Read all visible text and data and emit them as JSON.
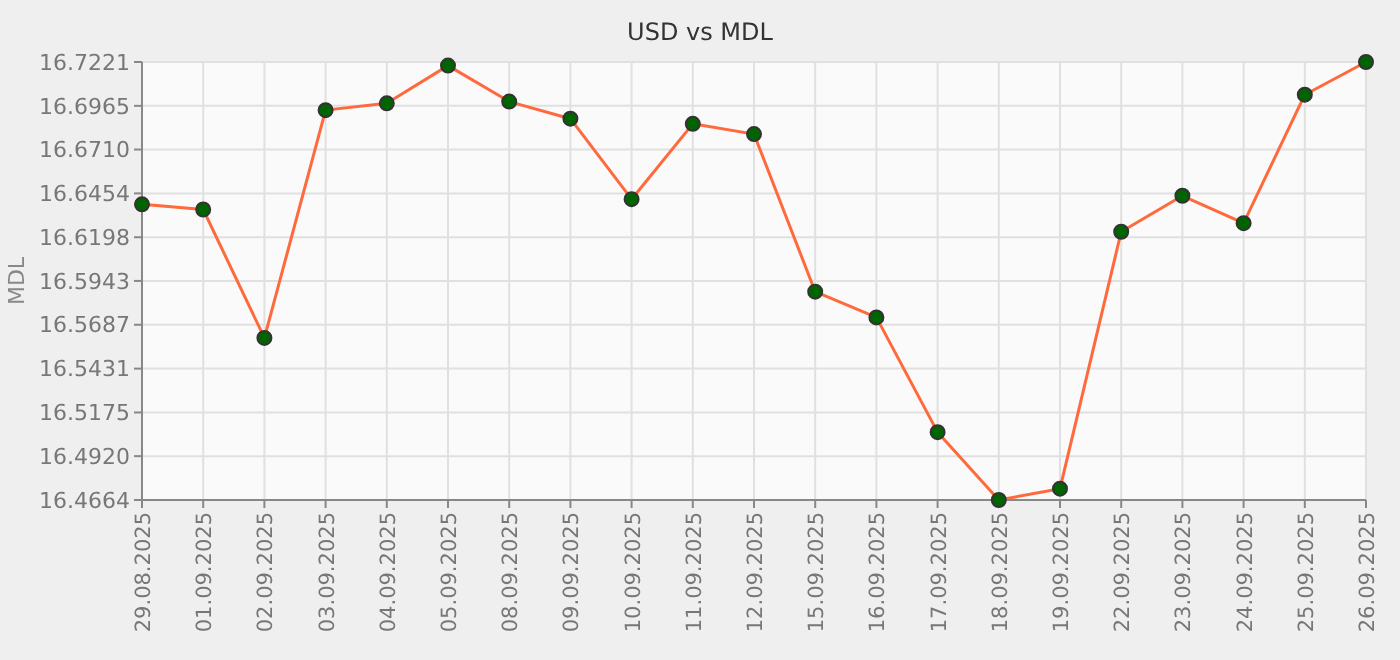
{
  "chart_data": {
    "type": "line",
    "title": "USD vs MDL",
    "ylabel": "MDL",
    "categories": [
      "29.08.2025",
      "01.09.2025",
      "02.09.2025",
      "03.09.2025",
      "04.09.2025",
      "05.09.2025",
      "08.09.2025",
      "09.09.2025",
      "10.09.2025",
      "11.09.2025",
      "12.09.2025",
      "15.09.2025",
      "16.09.2025",
      "17.09.2025",
      "18.09.2025",
      "19.09.2025",
      "22.09.2025",
      "23.09.2025",
      "24.09.2025",
      "25.09.2025",
      "26.09.2025"
    ],
    "series": [
      {
        "color": "#ff6a3d",
        "values": [
          16.639,
          16.636,
          16.561,
          16.694,
          16.698,
          16.72,
          16.699,
          16.689,
          16.642,
          16.686,
          16.68,
          16.588,
          16.573,
          16.506,
          16.4664,
          16.473,
          16.623,
          16.644,
          16.628,
          16.703,
          16.7221
        ]
      }
    ],
    "ylim": [
      16.4664,
      16.7221
    ],
    "yticks": [
      16.4664,
      {
        "value": 16.492,
        "label": "16.4920"
      },
      16.5175,
      16.5431,
      16.5687,
      16.5943,
      16.6198,
      16.6454,
      {
        "value": 16.671,
        "label": "16.6710"
      },
      16.6965,
      16.7221
    ],
    "grid": true,
    "marker": "circle",
    "line_style": "solid"
  }
}
